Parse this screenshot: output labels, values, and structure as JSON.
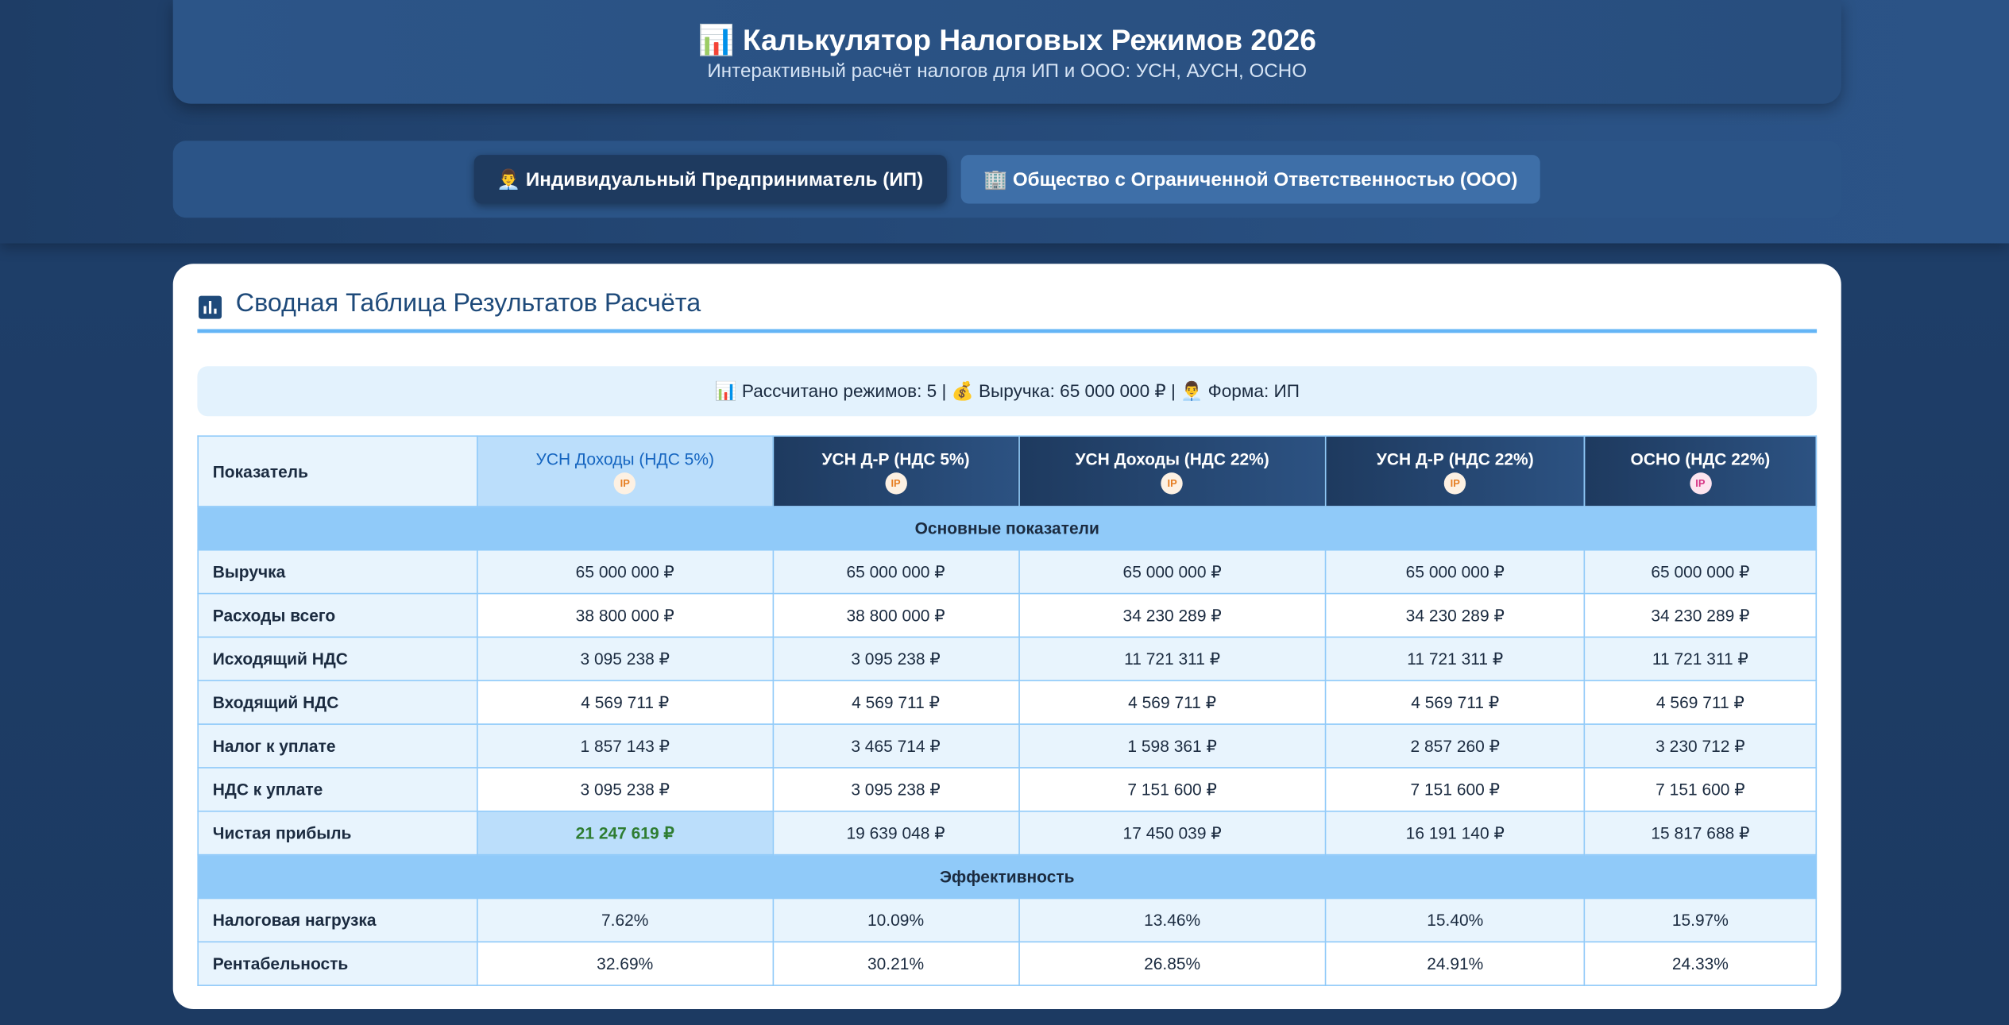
{
  "header": {
    "title": "📊 Калькулятор Налоговых Режимов 2026",
    "subtitle": "Интерактивный расчёт налогов для ИП и ООО: УСН, АУСН, ОСНО"
  },
  "tabs": [
    {
      "label": "👨‍💼 Индивидуальный Предприниматель (ИП)",
      "active": true
    },
    {
      "label": "🏢 Общество с Ограниченной Ответственностью (ООО)",
      "active": false
    }
  ],
  "summary": {
    "title": "Сводная Таблица Результатов Расчёта",
    "info": "📊 Рассчитано режимов: 5 | 💰 Выручка: 65 000 000 ₽ | 👨‍💼 Форма: ИП",
    "table": {
      "header": "Показатель",
      "columns": [
        {
          "name": "УСН Доходы (НДС 5%)",
          "badge": "IP",
          "badge_color": "#e67e22",
          "highlight": true
        },
        {
          "name": "УСН Д-Р (НДС 5%)",
          "badge": "IP",
          "badge_color": "#e67e22",
          "highlight": false
        },
        {
          "name": "УСН Доходы (НДС 22%)",
          "badge": "IP",
          "badge_color": "#e67e22",
          "highlight": false
        },
        {
          "name": "УСН Д-Р (НДС 22%)",
          "badge": "IP",
          "badge_color": "#e67e22",
          "highlight": false
        },
        {
          "name": "ОСНО (НДС 22%)",
          "badge": "IP",
          "badge_color": "#d63384",
          "highlight": false
        }
      ],
      "sections": [
        {
          "title": "Основные показатели",
          "rows": [
            {
              "label": "Выручка",
              "cells": [
                "65 000 000 ₽",
                "65 000 000 ₽",
                "65 000 000 ₽",
                "65 000 000 ₽",
                "65 000 000 ₽"
              ]
            },
            {
              "label": "Расходы всего",
              "cells": [
                "38 800 000 ₽",
                "38 800 000 ₽",
                "34 230 289 ₽",
                "34 230 289 ₽",
                "34 230 289 ₽"
              ]
            },
            {
              "label": "Исходящий НДС",
              "cells": [
                "3 095 238 ₽",
                "3 095 238 ₽",
                "11 721 311 ₽",
                "11 721 311 ₽",
                "11 721 311 ₽"
              ]
            },
            {
              "label": "Входящий НДС",
              "cells": [
                "4 569 711 ₽",
                "4 569 711 ₽",
                "4 569 711 ₽",
                "4 569 711 ₽",
                "4 569 711 ₽"
              ]
            },
            {
              "label": "Налог к уплате",
              "cells": [
                "1 857 143 ₽",
                "3 465 714 ₽",
                "1 598 361 ₽",
                "2 857 260 ₽",
                "3 230 712 ₽"
              ]
            },
            {
              "label": "НДС к уплате",
              "cells": [
                "3 095 238 ₽",
                "3 095 238 ₽",
                "7 151 600 ₽",
                "7 151 600 ₽",
                "7 151 600 ₽"
              ]
            },
            {
              "label": "Чистая прибыль",
              "cells": [
                "21 247 619 ₽",
                "19 639 048 ₽",
                "17 450 039 ₽",
                "16 191 140 ₽",
                "15 817 688 ₽"
              ],
              "best_column": 0
            }
          ]
        },
        {
          "title": "Эффективность",
          "rows": [
            {
              "label": "Налоговая нагрузка",
              "cells": [
                "7.62%",
                "10.09%",
                "13.46%",
                "15.40%",
                "15.97%"
              ]
            },
            {
              "label": "Рентабельность",
              "cells": [
                "32.69%",
                "30.21%",
                "26.85%",
                "24.91%",
                "24.33%"
              ]
            }
          ]
        }
      ]
    }
  }
}
